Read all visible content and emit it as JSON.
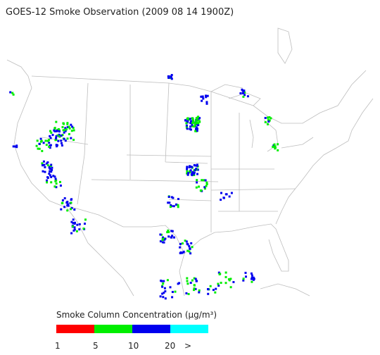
{
  "header": {
    "title": "GOES-12 Smoke Observation (2009 08 14  1900Z)"
  },
  "legend": {
    "title": "Smoke Column Concentration (μg/m³)",
    "labels": [
      "1",
      "5",
      "10",
      "20",
      ">"
    ],
    "colors": [
      "#ff0000",
      "#00ee00",
      "#0000ee",
      "#00ffff"
    ]
  }
}
